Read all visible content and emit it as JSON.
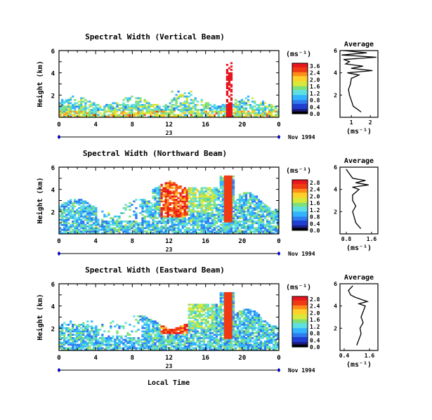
{
  "chart_data": {
    "type": "heatmap",
    "date_label": "Nov 1994",
    "day_label": "23",
    "xlabel_bottom": "Local Time",
    "x_ticks": [
      "0",
      "4",
      "8",
      "12",
      "16",
      "20",
      "0"
    ],
    "xlim": [
      0,
      24
    ],
    "ylabel": "Height (km)",
    "ylim": [
      0,
      6
    ],
    "y_ticks": [
      "2",
      "4",
      "6"
    ],
    "colorbar_unit": "(ms⁻¹)",
    "colormap": [
      "#1a1a80",
      "#1f3fd0",
      "#2f7cf0",
      "#33b3ff",
      "#5fe0e0",
      "#7fe07a",
      "#d8e83a",
      "#ffd02a",
      "#ff8c1a",
      "#f03a14",
      "#e8141e"
    ],
    "panels": [
      {
        "title": "Spectral Width (Vertical Beam)",
        "colorbar_ticks": [
          "3.6",
          "2.4",
          "2.0",
          "1.6",
          "1.2",
          "0.8",
          "0.4",
          "0.0"
        ],
        "vmax": 3.6,
        "avg": {
          "title": "Average",
          "xlabel": "(ms⁻¹)",
          "x_ticks": [
            "1",
            "2"
          ],
          "xlim": [
            0.4,
            2.4
          ],
          "height": [
            0.5,
            1.0,
            1.5,
            2.0,
            2.5,
            3.0,
            3.5,
            3.8,
            4.0,
            4.2,
            4.4,
            4.6,
            4.8,
            5.0,
            5.2,
            5.4,
            5.6,
            5.8,
            6.0
          ],
          "width": [
            1.5,
            1.1,
            1.0,
            0.9,
            0.85,
            0.95,
            1.0,
            1.4,
            0.8,
            2.1,
            1.0,
            1.6,
            0.7,
            0.9,
            0.6,
            2.3,
            0.5,
            1.8,
            0.6
          ]
        }
      },
      {
        "title": "Spectral Width (Northward Beam)",
        "colorbar_ticks": [
          "2.8",
          "2.4",
          "2.0",
          "1.6",
          "1.2",
          "0.8",
          "0.4",
          "0.0"
        ],
        "vmax": 2.8,
        "avg": {
          "title": "Average",
          "xlabel": "(ms⁻¹)",
          "x_ticks": [
            "0.8",
            "1.6"
          ],
          "xlim": [
            0.6,
            1.8
          ],
          "height": [
            0.5,
            1.0,
            1.5,
            2.0,
            2.5,
            3.0,
            3.5,
            4.0,
            4.2,
            4.4,
            4.6,
            4.8,
            5.0,
            5.4,
            5.8
          ],
          "width": [
            1.25,
            1.1,
            1.05,
            1.0,
            1.1,
            1.0,
            1.0,
            1.2,
            1.0,
            1.5,
            1.1,
            1.4,
            1.0,
            0.9,
            0.8
          ]
        }
      },
      {
        "title": "Spectral Width (Eastward Beam)",
        "colorbar_ticks": [
          "2.8",
          "2.4",
          "2.0",
          "1.6",
          "1.2",
          "0.8",
          "0.4",
          "0.0"
        ],
        "vmax": 2.8,
        "avg": {
          "title": "Average",
          "xlabel": "(ms⁻¹)",
          "x_ticks": [
            "0.4",
            "1.6"
          ],
          "xlim": [
            0.2,
            2.0
          ],
          "height": [
            0.5,
            1.0,
            1.5,
            2.0,
            2.5,
            3.0,
            3.5,
            4.0,
            4.2,
            4.4,
            4.6,
            4.8,
            5.0,
            5.4,
            5.8
          ],
          "width": [
            1.0,
            1.1,
            1.2,
            1.15,
            1.3,
            1.2,
            1.3,
            1.4,
            1.1,
            1.5,
            1.2,
            0.9,
            0.7,
            0.6,
            0.8
          ]
        }
      }
    ]
  }
}
